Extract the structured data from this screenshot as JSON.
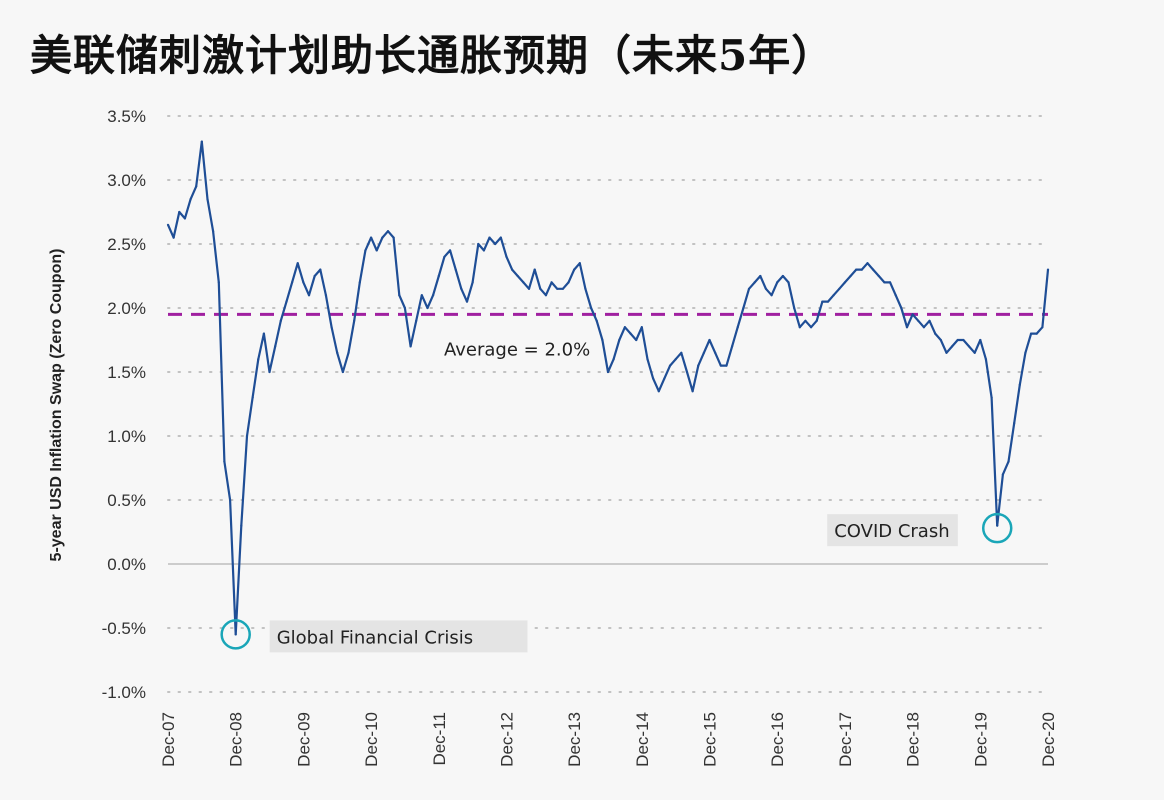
{
  "title": "美联储刺激计划助长通胀预期（未来5年）",
  "chart_data": {
    "type": "line",
    "title": "美联储刺激计划助长通胀预期（未来5年）",
    "ylabel": "5-year USD Inflation Swap (Zero Coupon)",
    "xlabel": "",
    "ylim": [
      -1.0,
      3.5
    ],
    "xlim": [
      "2007-12",
      "2020-12"
    ],
    "y_ticks": [
      "3.5%",
      "3.0%",
      "2.5%",
      "2.0%",
      "1.5%",
      "1.0%",
      "0.5%",
      "0.0%",
      "-0.5%",
      "-1.0%"
    ],
    "x_ticks": [
      "Dec-07",
      "Dec-08",
      "Dec-09",
      "Dec-10",
      "Dec-11",
      "Dec-12",
      "Dec-13",
      "Dec-14",
      "Dec-15",
      "Dec-16",
      "Dec-17",
      "Dec-18",
      "Dec-19",
      "Dec-20"
    ],
    "grid": "horizontal dotted",
    "average": {
      "value": 1.95,
      "label": "Average = 2.0%",
      "color": "#a020a0"
    },
    "series": [
      {
        "color": "#1f4e96",
        "points": [
          [
            "2007-12",
            2.65
          ],
          [
            "2008-01",
            2.55
          ],
          [
            "2008-02",
            2.75
          ],
          [
            "2008-03",
            2.7
          ],
          [
            "2008-04",
            2.85
          ],
          [
            "2008-05",
            2.95
          ],
          [
            "2008-06",
            3.3
          ],
          [
            "2008-07",
            2.85
          ],
          [
            "2008-08",
            2.6
          ],
          [
            "2008-09",
            2.2
          ],
          [
            "2008-10",
            0.8
          ],
          [
            "2008-11",
            0.5
          ],
          [
            "2008-12",
            -0.55
          ],
          [
            "2009-01",
            0.3
          ],
          [
            "2009-02",
            1.0
          ],
          [
            "2009-03",
            1.3
          ],
          [
            "2009-04",
            1.6
          ],
          [
            "2009-05",
            1.8
          ],
          [
            "2009-06",
            1.5
          ],
          [
            "2009-07",
            1.7
          ],
          [
            "2009-08",
            1.9
          ],
          [
            "2009-09",
            2.05
          ],
          [
            "2009-10",
            2.2
          ],
          [
            "2009-11",
            2.35
          ],
          [
            "2009-12",
            2.2
          ],
          [
            "2010-01",
            2.1
          ],
          [
            "2010-02",
            2.25
          ],
          [
            "2010-03",
            2.3
          ],
          [
            "2010-04",
            2.1
          ],
          [
            "2010-05",
            1.85
          ],
          [
            "2010-06",
            1.65
          ],
          [
            "2010-07",
            1.5
          ],
          [
            "2010-08",
            1.65
          ],
          [
            "2010-09",
            1.9
          ],
          [
            "2010-10",
            2.2
          ],
          [
            "2010-11",
            2.45
          ],
          [
            "2010-12",
            2.55
          ],
          [
            "2011-01",
            2.45
          ],
          [
            "2011-02",
            2.55
          ],
          [
            "2011-03",
            2.6
          ],
          [
            "2011-04",
            2.55
          ],
          [
            "2011-05",
            2.1
          ],
          [
            "2011-06",
            2.0
          ],
          [
            "2011-07",
            1.7
          ],
          [
            "2011-08",
            1.9
          ],
          [
            "2011-09",
            2.1
          ],
          [
            "2011-10",
            2.0
          ],
          [
            "2011-11",
            2.1
          ],
          [
            "2011-12",
            2.25
          ],
          [
            "2012-01",
            2.4
          ],
          [
            "2012-02",
            2.45
          ],
          [
            "2012-03",
            2.3
          ],
          [
            "2012-04",
            2.15
          ],
          [
            "2012-05",
            2.05
          ],
          [
            "2012-06",
            2.2
          ],
          [
            "2012-07",
            2.5
          ],
          [
            "2012-08",
            2.45
          ],
          [
            "2012-09",
            2.55
          ],
          [
            "2012-10",
            2.5
          ],
          [
            "2012-11",
            2.55
          ],
          [
            "2012-12",
            2.4
          ],
          [
            "2013-01",
            2.3
          ],
          [
            "2013-02",
            2.25
          ],
          [
            "2013-03",
            2.2
          ],
          [
            "2013-04",
            2.15
          ],
          [
            "2013-05",
            2.3
          ],
          [
            "2013-06",
            2.15
          ],
          [
            "2013-07",
            2.1
          ],
          [
            "2013-08",
            2.2
          ],
          [
            "2013-09",
            2.15
          ],
          [
            "2013-10",
            2.15
          ],
          [
            "2013-11",
            2.2
          ],
          [
            "2013-12",
            2.3
          ],
          [
            "2014-01",
            2.35
          ],
          [
            "2014-02",
            2.15
          ],
          [
            "2014-03",
            2.0
          ],
          [
            "2014-04",
            1.9
          ],
          [
            "2014-05",
            1.75
          ],
          [
            "2014-06",
            1.5
          ],
          [
            "2014-07",
            1.6
          ],
          [
            "2014-08",
            1.75
          ],
          [
            "2014-09",
            1.85
          ],
          [
            "2014-10",
            1.8
          ],
          [
            "2014-11",
            1.75
          ],
          [
            "2014-12",
            1.85
          ],
          [
            "2015-01",
            1.6
          ],
          [
            "2015-02",
            1.45
          ],
          [
            "2015-03",
            1.35
          ],
          [
            "2015-04",
            1.45
          ],
          [
            "2015-05",
            1.55
          ],
          [
            "2015-06",
            1.6
          ],
          [
            "2015-07",
            1.65
          ],
          [
            "2015-08",
            1.5
          ],
          [
            "2015-09",
            1.35
          ],
          [
            "2015-10",
            1.55
          ],
          [
            "2015-11",
            1.65
          ],
          [
            "2015-12",
            1.75
          ],
          [
            "2016-01",
            1.65
          ],
          [
            "2016-02",
            1.55
          ],
          [
            "2016-03",
            1.55
          ],
          [
            "2016-04",
            1.7
          ],
          [
            "2016-05",
            1.85
          ],
          [
            "2016-06",
            2.0
          ],
          [
            "2016-07",
            2.15
          ],
          [
            "2016-08",
            2.2
          ],
          [
            "2016-09",
            2.25
          ],
          [
            "2016-10",
            2.15
          ],
          [
            "2016-11",
            2.1
          ],
          [
            "2016-12",
            2.2
          ],
          [
            "2017-01",
            2.25
          ],
          [
            "2017-02",
            2.2
          ],
          [
            "2017-03",
            2.0
          ],
          [
            "2017-04",
            1.85
          ],
          [
            "2017-05",
            1.9
          ],
          [
            "2017-06",
            1.85
          ],
          [
            "2017-07",
            1.9
          ],
          [
            "2017-08",
            2.05
          ],
          [
            "2017-09",
            2.05
          ],
          [
            "2017-10",
            2.1
          ],
          [
            "2017-11",
            2.15
          ],
          [
            "2017-12",
            2.2
          ],
          [
            "2018-01",
            2.25
          ],
          [
            "2018-02",
            2.3
          ],
          [
            "2018-03",
            2.3
          ],
          [
            "2018-04",
            2.35
          ],
          [
            "2018-05",
            2.3
          ],
          [
            "2018-06",
            2.25
          ],
          [
            "2018-07",
            2.2
          ],
          [
            "2018-08",
            2.2
          ],
          [
            "2018-09",
            2.1
          ],
          [
            "2018-10",
            2.0
          ],
          [
            "2018-11",
            1.85
          ],
          [
            "2018-12",
            1.95
          ],
          [
            "2019-01",
            1.9
          ],
          [
            "2019-02",
            1.85
          ],
          [
            "2019-03",
            1.9
          ],
          [
            "2019-04",
            1.8
          ],
          [
            "2019-05",
            1.75
          ],
          [
            "2019-06",
            1.65
          ],
          [
            "2019-07",
            1.7
          ],
          [
            "2019-08",
            1.75
          ],
          [
            "2019-09",
            1.75
          ],
          [
            "2019-10",
            1.7
          ],
          [
            "2019-11",
            1.65
          ],
          [
            "2019-12",
            1.75
          ],
          [
            "2020-01",
            1.6
          ],
          [
            "2020-02",
            1.3
          ],
          [
            "2020-03",
            0.3
          ],
          [
            "2020-04",
            0.7
          ],
          [
            "2020-05",
            0.8
          ],
          [
            "2020-06",
            1.1
          ],
          [
            "2020-07",
            1.4
          ],
          [
            "2020-08",
            1.65
          ],
          [
            "2020-09",
            1.8
          ],
          [
            "2020-10",
            1.8
          ],
          [
            "2020-11",
            1.85
          ],
          [
            "2020-12",
            2.3
          ]
        ]
      }
    ],
    "annotations": [
      {
        "label": "Global Financial Crisis",
        "x": "2008-12",
        "y": -0.55,
        "marker_color": "#1aa6b8"
      },
      {
        "label": "COVID Crash",
        "x": "2020-03",
        "y": 0.28,
        "marker_color": "#1aa6b8"
      }
    ]
  }
}
